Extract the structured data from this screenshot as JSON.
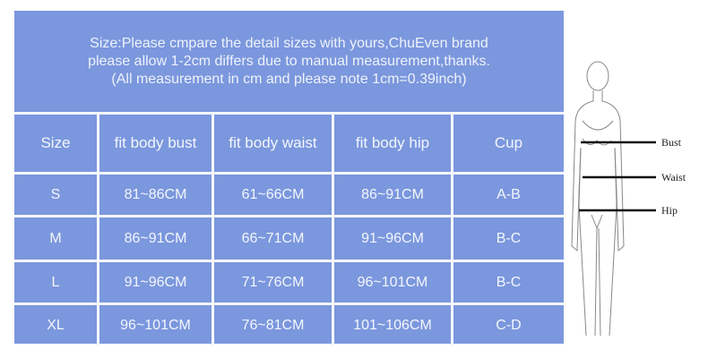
{
  "note": {
    "lines": [
      "Size:Please cmpare the detail sizes with yours,ChuEven brand",
      "please allow 1-2cm differs due to manual measurement,thanks.",
      "(All measurement in cm and please note 1cm=0.39inch)"
    ]
  },
  "table": {
    "headers": [
      "Size",
      "fit body bust",
      "fit body waist",
      "fit body hip",
      "Cup"
    ],
    "rows": [
      [
        "S",
        "81~86CM",
        "61~66CM",
        "86~91CM",
        "A-B"
      ],
      [
        "M",
        "86~91CM",
        "66~71CM",
        "91~96CM",
        "B-C"
      ],
      [
        "L",
        "91~96CM",
        "71~76CM",
        "96~101CM",
        "B-C"
      ],
      [
        "XL",
        "96~101CM",
        "76~81CM",
        "101~106CM",
        "C-D"
      ]
    ]
  },
  "figure": {
    "labels": [
      "Bust",
      "Waist",
      "Hip"
    ]
  },
  "colors": {
    "table_bg": "#7b97dd",
    "grid_lines": "#f4f6fc"
  }
}
